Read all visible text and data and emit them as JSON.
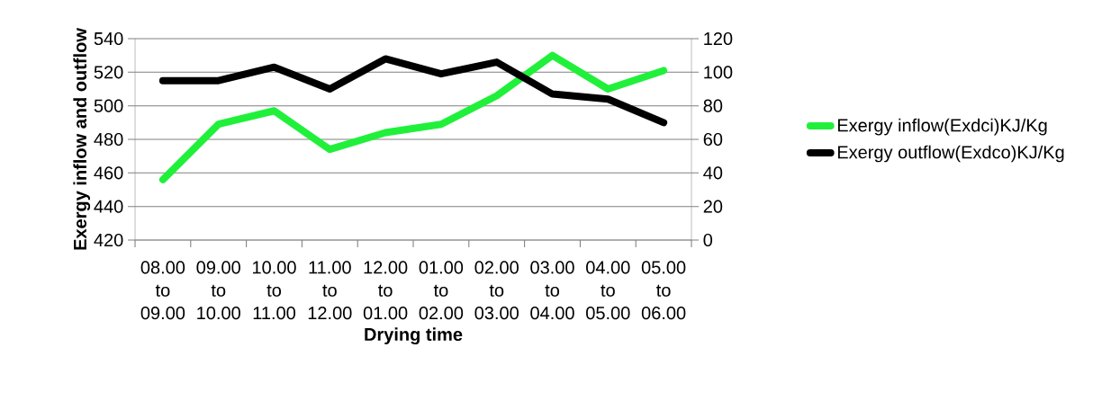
{
  "chart_data": {
    "type": "line",
    "xlabel": "Drying time",
    "ylabel": "Exergy inflow and outflow",
    "categories": [
      "08.00 to 09.00",
      "09.00 to 10.00",
      "10.00 to 11.00",
      "11.00 to 12.00",
      "12.00 to 01.00",
      "01.00 to 02.00",
      "02.00 to 03.00",
      "03.00 to 04.00",
      "04.00 to 05.00",
      "05.00 to 06.00"
    ],
    "series": [
      {
        "name": "Exergy inflow(Exdci)KJ/Kg",
        "color": "#21f03b",
        "values": [
          456,
          489,
          497,
          474,
          484,
          489,
          506,
          530,
          510,
          521
        ]
      },
      {
        "name": "Exergy outflow(Exdco)KJ/Kg",
        "color": "#000000",
        "axis": "y2",
        "values": [
          95,
          95,
          103,
          90,
          108,
          99,
          106,
          87,
          84,
          70
        ]
      }
    ],
    "ylim": [
      420,
      540
    ],
    "yticks": [
      420,
      440,
      460,
      480,
      500,
      520,
      540
    ],
    "y2lim": [
      0,
      120
    ],
    "y2ticks": [
      0,
      20,
      40,
      60,
      80,
      100,
      120
    ],
    "grid": "y",
    "legend": "right",
    "marker": "none",
    "line_style": "solid"
  }
}
